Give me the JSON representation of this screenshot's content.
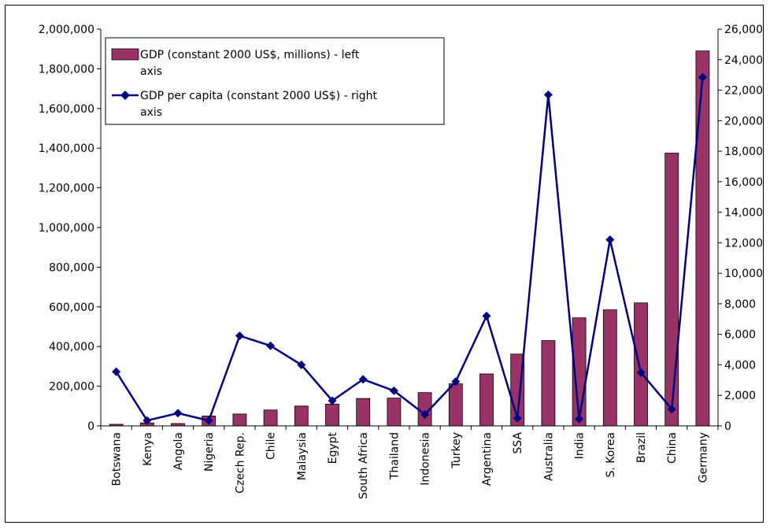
{
  "chart_data": {
    "type": "bar",
    "categories": [
      "Botswana",
      "Kenya",
      "Angola",
      "Nigeria",
      "Czech Rep.",
      "Chile",
      "Malaysia",
      "Egypt",
      "South Africa",
      "Thailand",
      "Indonesia",
      "Turkey",
      "Argentina",
      "SSA",
      "Australia",
      "India",
      "S. Korea",
      "Brazil",
      "China",
      "Germany"
    ],
    "series": [
      {
        "name": "GDP (constant 2000 US$, millions) - left axis",
        "type": "bar",
        "axis": "left",
        "color": "#993366",
        "values": [
          8000,
          15000,
          12000,
          50000,
          60000,
          80000,
          100000,
          110000,
          138000,
          140000,
          168000,
          212000,
          262000,
          362000,
          430000,
          545000,
          585000,
          620000,
          1375000,
          1890000
        ]
      },
      {
        "name": "GDP per capita (constant 2000 US$) - right axis",
        "type": "line",
        "axis": "right",
        "color": "#000080",
        "values": [
          3550,
          350,
          830,
          350,
          5900,
          5250,
          4000,
          1650,
          3050,
          2300,
          750,
          2900,
          7200,
          500,
          21700,
          450,
          12200,
          3500,
          1100,
          22850
        ]
      }
    ],
    "left_axis": {
      "ylim": [
        0,
        2000000
      ],
      "ticks": [
        0,
        200000,
        400000,
        600000,
        800000,
        1000000,
        1200000,
        1400000,
        1600000,
        1800000,
        2000000
      ],
      "tick_labels": [
        "0",
        "200,000",
        "400,000",
        "600,000",
        "800,000",
        "1,000,000",
        "1,200,000",
        "1,400,000",
        "1,600,000",
        "1,800,000",
        "2,000,000"
      ]
    },
    "right_axis": {
      "ylim": [
        0,
        26000
      ],
      "ticks": [
        0,
        2000,
        4000,
        6000,
        8000,
        10000,
        12000,
        14000,
        16000,
        18000,
        20000,
        22000,
        24000,
        26000
      ],
      "tick_labels": [
        "0",
        "2,000",
        "4,000",
        "6,000",
        "8,000",
        "10,000",
        "12,000",
        "14,000",
        "16,000",
        "18,000",
        "20,000",
        "22,000",
        "24,000",
        "26,000"
      ]
    },
    "legend": {
      "placement": "top-left",
      "entries": [
        {
          "line1": "GDP (constant 2000 US$, millions) - left",
          "line2": "axis"
        },
        {
          "line1": "GDP per capita (constant 2000 US$) - right",
          "line2": "axis"
        }
      ]
    },
    "grid": false,
    "title": "",
    "xlabel": "",
    "ylabel": ""
  }
}
